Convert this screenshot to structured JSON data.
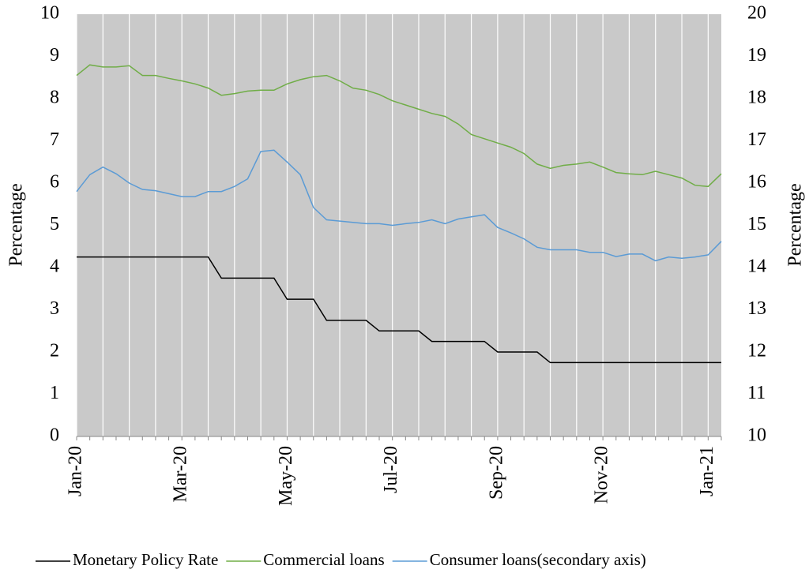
{
  "chart_data": {
    "type": "line",
    "categories": [
      "Jan-20",
      null,
      null,
      null,
      null,
      null,
      null,
      null,
      "Mar-20",
      null,
      null,
      null,
      null,
      null,
      null,
      null,
      "May-20",
      null,
      null,
      null,
      null,
      null,
      null,
      null,
      "Jul-20",
      null,
      null,
      null,
      null,
      null,
      null,
      null,
      "Sep-20",
      null,
      null,
      null,
      null,
      null,
      null,
      null,
      "Nov-20",
      null,
      null,
      null,
      null,
      null,
      null,
      null,
      "Jan-21",
      null
    ],
    "series": [
      {
        "name": "Monetary Policy Rate",
        "color": "#000000",
        "values": [
          4.25,
          4.25,
          4.25,
          4.25,
          4.25,
          4.25,
          4.25,
          4.25,
          4.25,
          4.25,
          4.25,
          3.75,
          3.75,
          3.75,
          3.75,
          3.75,
          3.25,
          3.25,
          3.25,
          2.75,
          2.75,
          2.75,
          2.75,
          2.5,
          2.5,
          2.5,
          2.5,
          2.25,
          2.25,
          2.25,
          2.25,
          2.25,
          2.0,
          2.0,
          2.0,
          2.0,
          1.75,
          1.75,
          1.75,
          1.75,
          1.75,
          1.75,
          1.75,
          1.75,
          1.75,
          1.75,
          1.75,
          1.75,
          1.75,
          1.75
        ]
      },
      {
        "name": "Commercial loans",
        "color": "#70ad47",
        "values": [
          8.55,
          8.8,
          8.75,
          8.75,
          8.78,
          8.55,
          8.55,
          8.48,
          8.42,
          8.35,
          8.25,
          8.08,
          8.12,
          8.18,
          8.2,
          8.2,
          8.35,
          8.45,
          8.52,
          8.55,
          8.42,
          8.25,
          8.2,
          8.1,
          7.95,
          7.85,
          7.75,
          7.65,
          7.58,
          7.4,
          7.15,
          7.05,
          6.95,
          6.85,
          6.7,
          6.45,
          6.35,
          6.42,
          6.45,
          6.5,
          6.38,
          6.25,
          6.22,
          6.2,
          6.28,
          6.2,
          6.12,
          5.95,
          5.92,
          6.22
        ]
      },
      {
        "name": "Consumer loans(secondary axis)",
        "color": "#5b9bd5",
        "axis": "y2",
        "values": [
          15.8,
          16.2,
          16.38,
          16.22,
          16.0,
          15.85,
          15.82,
          15.75,
          15.68,
          15.68,
          15.8,
          15.8,
          15.92,
          16.1,
          16.75,
          16.78,
          16.5,
          16.2,
          15.42,
          15.13,
          15.1,
          15.07,
          15.04,
          15.04,
          15.0,
          15.04,
          15.07,
          15.13,
          15.04,
          15.15,
          15.2,
          15.25,
          14.95,
          14.82,
          14.68,
          14.48,
          14.42,
          14.42,
          14.42,
          14.36,
          14.36,
          14.26,
          14.32,
          14.32,
          14.16,
          14.25,
          14.22,
          14.25,
          14.3,
          14.62
        ]
      }
    ],
    "ylabel": "Percentage",
    "y2label": "Percentage",
    "ylim": [
      0,
      10
    ],
    "yticks": [
      0,
      1,
      2,
      3,
      4,
      5,
      6,
      7,
      8,
      9,
      10
    ],
    "y2lim": [
      10,
      20
    ],
    "y2ticks": [
      10,
      11,
      12,
      13,
      14,
      15,
      16,
      17,
      18,
      19,
      20
    ],
    "grid": "vertical",
    "legend": "bottom"
  }
}
